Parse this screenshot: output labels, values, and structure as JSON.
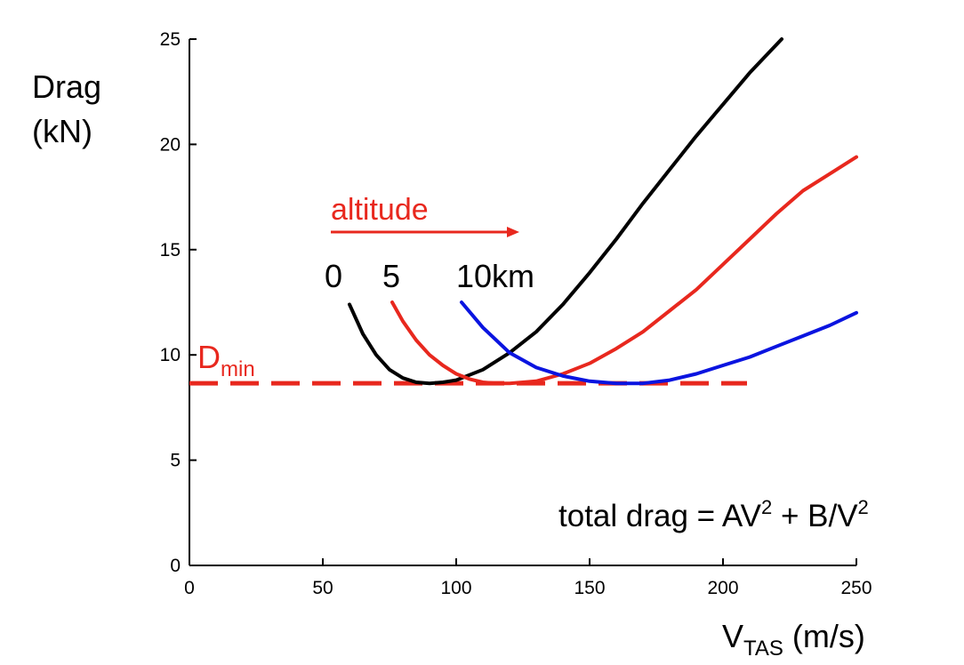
{
  "chart_data": {
    "type": "line",
    "ylabel": [
      "Drag",
      "(kN)"
    ],
    "xlabel": {
      "main": "V",
      "sub": "TAS",
      "unit": " (m/s)"
    },
    "xlim": [
      0,
      250
    ],
    "ylim": [
      0,
      25
    ],
    "xticks": [
      0,
      50,
      100,
      150,
      200,
      250
    ],
    "yticks": [
      0,
      5,
      10,
      15,
      20,
      25
    ],
    "grid": false,
    "series": [
      {
        "name": "0",
        "color": "#000000",
        "points": [
          [
            60,
            12.4
          ],
          [
            65,
            11.0
          ],
          [
            70,
            10.0
          ],
          [
            75,
            9.3
          ],
          [
            80,
            8.9
          ],
          [
            85,
            8.7
          ],
          [
            90,
            8.65
          ],
          [
            95,
            8.7
          ],
          [
            100,
            8.8
          ],
          [
            110,
            9.3
          ],
          [
            120,
            10.1
          ],
          [
            130,
            11.1
          ],
          [
            140,
            12.4
          ],
          [
            150,
            13.9
          ],
          [
            160,
            15.5
          ],
          [
            170,
            17.2
          ],
          [
            180,
            18.8
          ],
          [
            190,
            20.4
          ],
          [
            200,
            21.9
          ],
          [
            210,
            23.4
          ],
          [
            222,
            25.0
          ]
        ]
      },
      {
        "name": "5",
        "color": "#e8281e",
        "points": [
          [
            76,
            12.5
          ],
          [
            80,
            11.6
          ],
          [
            85,
            10.7
          ],
          [
            90,
            10.0
          ],
          [
            95,
            9.5
          ],
          [
            100,
            9.1
          ],
          [
            105,
            8.85
          ],
          [
            110,
            8.7
          ],
          [
            115,
            8.65
          ],
          [
            120,
            8.65
          ],
          [
            130,
            8.75
          ],
          [
            140,
            9.1
          ],
          [
            150,
            9.6
          ],
          [
            160,
            10.3
          ],
          [
            170,
            11.1
          ],
          [
            180,
            12.1
          ],
          [
            190,
            13.1
          ],
          [
            200,
            14.3
          ],
          [
            210,
            15.5
          ],
          [
            220,
            16.7
          ],
          [
            230,
            17.8
          ],
          [
            240,
            18.6
          ],
          [
            250,
            19.4
          ]
        ]
      },
      {
        "name": "10km",
        "color": "#0a14e0",
        "points": [
          [
            102,
            12.5
          ],
          [
            110,
            11.3
          ],
          [
            120,
            10.1
          ],
          [
            130,
            9.4
          ],
          [
            140,
            9.0
          ],
          [
            150,
            8.75
          ],
          [
            160,
            8.65
          ],
          [
            170,
            8.65
          ],
          [
            180,
            8.8
          ],
          [
            190,
            9.1
          ],
          [
            200,
            9.5
          ],
          [
            210,
            9.9
          ],
          [
            220,
            10.4
          ],
          [
            230,
            10.9
          ],
          [
            240,
            11.4
          ],
          [
            250,
            12.0
          ]
        ]
      }
    ],
    "dmin": {
      "y": 8.65,
      "x_start": 0,
      "x_end": 209,
      "color": "#e8281e",
      "label_main": "D",
      "label_sub": "min"
    },
    "curve_labels": [
      "0",
      "5",
      "10km"
    ],
    "altitude_label": "altitude",
    "altitude_color": "#e8281e",
    "formula": {
      "parts": [
        "total drag = AV",
        "2",
        " + B/V",
        "2"
      ]
    }
  }
}
